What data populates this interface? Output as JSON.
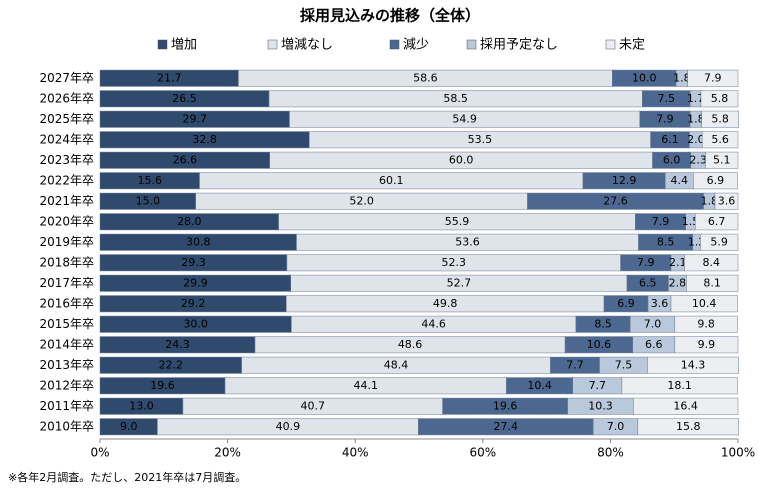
{
  "chart_data": {
    "type": "stacked_bar_horizontal",
    "title": "採用見込みの推移（全体）",
    "footnote": "※各年2月調査。ただし、2021年卒は7月調査。",
    "categories": [
      "2027年卒",
      "2026年卒",
      "2025年卒",
      "2024年卒",
      "2023年卒",
      "2022年卒",
      "2021年卒",
      "2020年卒",
      "2019年卒",
      "2018年卒",
      "2017年卒",
      "2016年卒",
      "2015年卒",
      "2014年卒",
      "2013年卒",
      "2012年卒",
      "2011年卒",
      "2010年卒"
    ],
    "series": [
      {
        "name": "増加",
        "color": "#2f4a6d",
        "label_color": "#ffffff",
        "values": [
          21.7,
          26.5,
          29.7,
          32.8,
          26.6,
          15.6,
          15.0,
          28.0,
          30.8,
          29.3,
          29.9,
          29.2,
          30.0,
          24.3,
          22.2,
          19.6,
          13.0,
          9.0
        ],
        "value_labels": [
          "21.7",
          "26.5",
          "29.7",
          "32.8",
          "26.6",
          "15.6",
          "15.0",
          "28.0",
          "30.8",
          "29.3",
          "29.9",
          "29.2",
          "30.0",
          "24.3",
          "22.2",
          "19.6",
          "13.0",
          "9.0"
        ]
      },
      {
        "name": "増減なし",
        "color": "#dfe4ea",
        "label_color": "#000000",
        "values": [
          58.6,
          58.5,
          54.9,
          53.5,
          60.0,
          60.1,
          52.0,
          55.9,
          53.6,
          52.3,
          52.7,
          49.8,
          44.6,
          48.6,
          48.4,
          44.1,
          40.7,
          40.9
        ],
        "value_labels": [
          "58.6",
          "58.5",
          "54.9",
          "53.5",
          "60.0",
          "60.1",
          "52.0",
          "55.9",
          "53.6",
          "52.3",
          "52.7",
          "49.8",
          "44.6",
          "48.6",
          "48.4",
          "44.1",
          "40.7",
          "40.9"
        ]
      },
      {
        "name": "減少",
        "color": "#4d6890",
        "label_color": "#ffffff",
        "values": [
          10.0,
          7.5,
          7.9,
          6.1,
          6.0,
          12.9,
          27.6,
          7.9,
          8.5,
          7.9,
          6.5,
          6.9,
          8.5,
          10.6,
          7.7,
          10.4,
          19.6,
          27.4
        ],
        "value_labels": [
          "10.0",
          "7.5",
          "7.9",
          "6.1",
          "6.0",
          "12.9",
          "27.6",
          "7.9",
          "8.5",
          "7.9",
          "6.5",
          "6.9",
          "8.5",
          "10.6",
          "7.7",
          "10.4",
          "19.6",
          "27.4"
        ]
      },
      {
        "name": "採用予定なし",
        "color": "#b9c8db",
        "label_color": "#000000",
        "values": [
          1.8,
          1.7,
          1.8,
          2.0,
          2.3,
          4.4,
          1.8,
          1.5,
          1.2,
          2.1,
          2.8,
          3.6,
          7.0,
          6.6,
          7.5,
          7.7,
          10.3,
          7.0
        ],
        "value_labels": [
          "1.8",
          "1.7",
          "1.8",
          "2.0",
          "2.3",
          "4.4",
          "1.8",
          "1.5",
          "1.2",
          "2.1",
          "2.8",
          "3.6",
          "7.0",
          "6.6",
          "7.5",
          "7.7",
          "10.3",
          "7.0"
        ]
      },
      {
        "name": "未定",
        "color": "#eceef2",
        "label_color": "#000000",
        "values": [
          7.9,
          5.8,
          5.8,
          5.6,
          5.1,
          6.9,
          3.6,
          6.7,
          5.9,
          8.4,
          8.1,
          10.4,
          9.8,
          9.9,
          14.3,
          18.1,
          16.4,
          15.8
        ],
        "value_labels": [
          "7.9",
          "5.8",
          "5.8",
          "5.6",
          "5.1",
          "6.9",
          "3.6",
          "6.7",
          "5.9",
          "8.4",
          "8.1",
          "10.4",
          "9.8",
          "9.9",
          "14.3",
          "18.1",
          "16.4",
          "15.8"
        ]
      }
    ],
    "xlim": [
      0,
      100
    ],
    "xticks": [
      {
        "value": 0,
        "label": "0%"
      },
      {
        "value": 20,
        "label": "20%"
      },
      {
        "value": 40,
        "label": "40%"
      },
      {
        "value": 60,
        "label": "60%"
      },
      {
        "value": 80,
        "label": "80%"
      },
      {
        "value": 100,
        "label": "100%"
      }
    ]
  }
}
